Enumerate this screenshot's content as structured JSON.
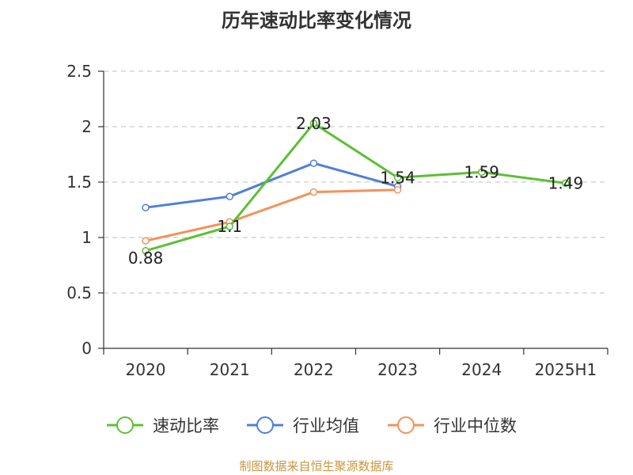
{
  "chart_data": {
    "type": "line",
    "title": "历年速动比率变化情况",
    "categories": [
      "2020",
      "2021",
      "2022",
      "2023",
      "2024",
      "2025H1"
    ],
    "ylim": [
      0,
      2.5
    ],
    "yticks": [
      0,
      0.5,
      1,
      1.5,
      2,
      2.5
    ],
    "ytick_labels": [
      "0",
      "0.5",
      "1",
      "1.5",
      "2",
      "2.5"
    ],
    "grid": true,
    "legend_position": "bottom",
    "series": [
      {
        "name": "速动比率",
        "color": "#5cc033",
        "values": [
          0.88,
          1.1,
          2.03,
          1.54,
          1.59,
          1.49
        ],
        "labels": [
          "0.88",
          "1.1",
          "2.03",
          "1.54",
          "1.59",
          "1.49"
        ]
      },
      {
        "name": "行业均值",
        "color": "#4f7fd8",
        "values": [
          1.27,
          1.37,
          1.67,
          1.46,
          null,
          null
        ]
      },
      {
        "name": "行业中位数",
        "color": "#f5915a",
        "values": [
          0.97,
          1.14,
          1.41,
          1.43,
          null,
          null
        ]
      }
    ]
  },
  "source_note": "制图数据来自恒生聚源数据库"
}
